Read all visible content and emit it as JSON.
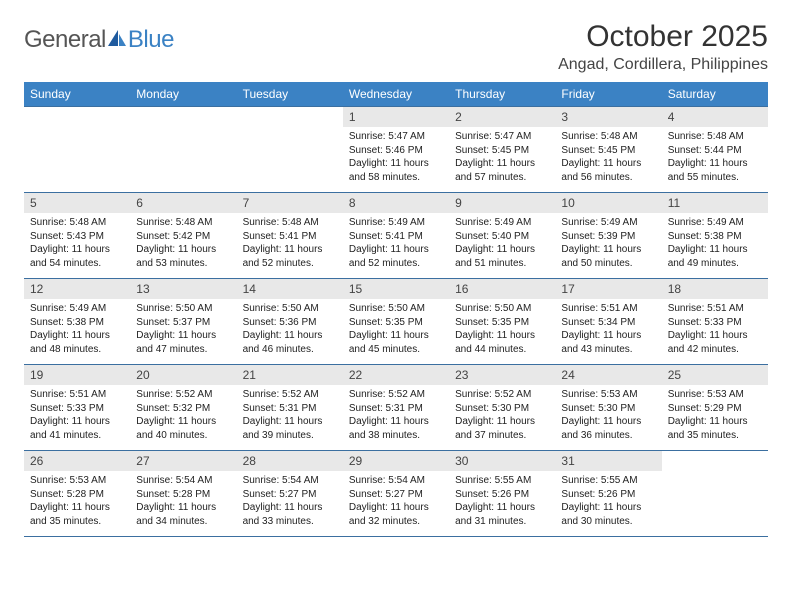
{
  "logo": {
    "general": "General",
    "blue": "Blue"
  },
  "title": "October 2025",
  "location": "Angad, Cordillera, Philippines",
  "colors": {
    "header_bg": "#3b82c4",
    "header_text": "#ffffff",
    "border": "#3b6fa0",
    "daynum_bg": "#e8e8e8",
    "logo_gray": "#555555",
    "logo_blue": "#3b82c4"
  },
  "weekdays": [
    "Sunday",
    "Monday",
    "Tuesday",
    "Wednesday",
    "Thursday",
    "Friday",
    "Saturday"
  ],
  "weeks": [
    [
      null,
      null,
      null,
      {
        "n": "1",
        "sr": "5:47 AM",
        "ss": "5:46 PM",
        "dl": "11 hours and 58 minutes."
      },
      {
        "n": "2",
        "sr": "5:47 AM",
        "ss": "5:45 PM",
        "dl": "11 hours and 57 minutes."
      },
      {
        "n": "3",
        "sr": "5:48 AM",
        "ss": "5:45 PM",
        "dl": "11 hours and 56 minutes."
      },
      {
        "n": "4",
        "sr": "5:48 AM",
        "ss": "5:44 PM",
        "dl": "11 hours and 55 minutes."
      }
    ],
    [
      {
        "n": "5",
        "sr": "5:48 AM",
        "ss": "5:43 PM",
        "dl": "11 hours and 54 minutes."
      },
      {
        "n": "6",
        "sr": "5:48 AM",
        "ss": "5:42 PM",
        "dl": "11 hours and 53 minutes."
      },
      {
        "n": "7",
        "sr": "5:48 AM",
        "ss": "5:41 PM",
        "dl": "11 hours and 52 minutes."
      },
      {
        "n": "8",
        "sr": "5:49 AM",
        "ss": "5:41 PM",
        "dl": "11 hours and 52 minutes."
      },
      {
        "n": "9",
        "sr": "5:49 AM",
        "ss": "5:40 PM",
        "dl": "11 hours and 51 minutes."
      },
      {
        "n": "10",
        "sr": "5:49 AM",
        "ss": "5:39 PM",
        "dl": "11 hours and 50 minutes."
      },
      {
        "n": "11",
        "sr": "5:49 AM",
        "ss": "5:38 PM",
        "dl": "11 hours and 49 minutes."
      }
    ],
    [
      {
        "n": "12",
        "sr": "5:49 AM",
        "ss": "5:38 PM",
        "dl": "11 hours and 48 minutes."
      },
      {
        "n": "13",
        "sr": "5:50 AM",
        "ss": "5:37 PM",
        "dl": "11 hours and 47 minutes."
      },
      {
        "n": "14",
        "sr": "5:50 AM",
        "ss": "5:36 PM",
        "dl": "11 hours and 46 minutes."
      },
      {
        "n": "15",
        "sr": "5:50 AM",
        "ss": "5:35 PM",
        "dl": "11 hours and 45 minutes."
      },
      {
        "n": "16",
        "sr": "5:50 AM",
        "ss": "5:35 PM",
        "dl": "11 hours and 44 minutes."
      },
      {
        "n": "17",
        "sr": "5:51 AM",
        "ss": "5:34 PM",
        "dl": "11 hours and 43 minutes."
      },
      {
        "n": "18",
        "sr": "5:51 AM",
        "ss": "5:33 PM",
        "dl": "11 hours and 42 minutes."
      }
    ],
    [
      {
        "n": "19",
        "sr": "5:51 AM",
        "ss": "5:33 PM",
        "dl": "11 hours and 41 minutes."
      },
      {
        "n": "20",
        "sr": "5:52 AM",
        "ss": "5:32 PM",
        "dl": "11 hours and 40 minutes."
      },
      {
        "n": "21",
        "sr": "5:52 AM",
        "ss": "5:31 PM",
        "dl": "11 hours and 39 minutes."
      },
      {
        "n": "22",
        "sr": "5:52 AM",
        "ss": "5:31 PM",
        "dl": "11 hours and 38 minutes."
      },
      {
        "n": "23",
        "sr": "5:52 AM",
        "ss": "5:30 PM",
        "dl": "11 hours and 37 minutes."
      },
      {
        "n": "24",
        "sr": "5:53 AM",
        "ss": "5:30 PM",
        "dl": "11 hours and 36 minutes."
      },
      {
        "n": "25",
        "sr": "5:53 AM",
        "ss": "5:29 PM",
        "dl": "11 hours and 35 minutes."
      }
    ],
    [
      {
        "n": "26",
        "sr": "5:53 AM",
        "ss": "5:28 PM",
        "dl": "11 hours and 35 minutes."
      },
      {
        "n": "27",
        "sr": "5:54 AM",
        "ss": "5:28 PM",
        "dl": "11 hours and 34 minutes."
      },
      {
        "n": "28",
        "sr": "5:54 AM",
        "ss": "5:27 PM",
        "dl": "11 hours and 33 minutes."
      },
      {
        "n": "29",
        "sr": "5:54 AM",
        "ss": "5:27 PM",
        "dl": "11 hours and 32 minutes."
      },
      {
        "n": "30",
        "sr": "5:55 AM",
        "ss": "5:26 PM",
        "dl": "11 hours and 31 minutes."
      },
      {
        "n": "31",
        "sr": "5:55 AM",
        "ss": "5:26 PM",
        "dl": "11 hours and 30 minutes."
      },
      null
    ]
  ],
  "labels": {
    "sunrise": "Sunrise:",
    "sunset": "Sunset:",
    "daylight": "Daylight:"
  }
}
